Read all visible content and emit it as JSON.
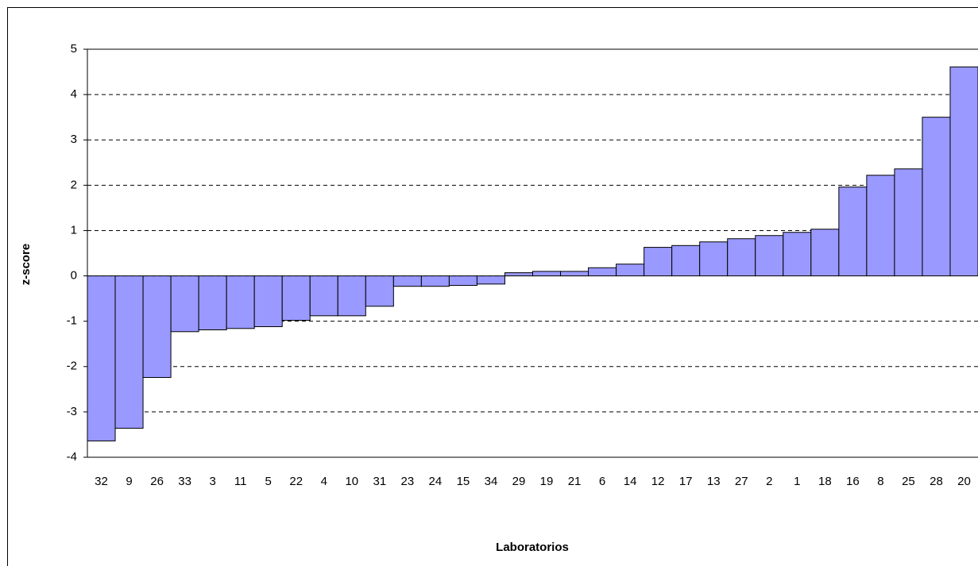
{
  "chart_data": {
    "type": "bar",
    "x_label": "Laboratorios",
    "y_label": "z-score",
    "categories": [
      "32",
      "9",
      "26",
      "33",
      "3",
      "11",
      "5",
      "22",
      "4",
      "10",
      "31",
      "23",
      "24",
      "15",
      "34",
      "29",
      "19",
      "21",
      "6",
      "14",
      "12",
      "17",
      "13",
      "27",
      "2",
      "1",
      "18",
      "16",
      "8",
      "25",
      "28",
      "20"
    ],
    "values": [
      -3.64,
      -3.36,
      -2.24,
      -1.23,
      -1.19,
      -1.16,
      -1.12,
      -0.98,
      -0.88,
      -0.88,
      -0.67,
      -0.23,
      -0.23,
      -0.21,
      -0.18,
      0.07,
      0.1,
      0.1,
      0.18,
      0.26,
      0.63,
      0.67,
      0.75,
      0.82,
      0.89,
      0.96,
      1.03,
      1.96,
      2.22,
      2.36,
      3.5,
      4.61
    ],
    "color": "#9999ff",
    "ylim": [
      -4,
      5
    ],
    "yticks": [
      -4,
      -3,
      -2,
      -1,
      0,
      1,
      2,
      3,
      4,
      5
    ],
    "grid": true
  }
}
